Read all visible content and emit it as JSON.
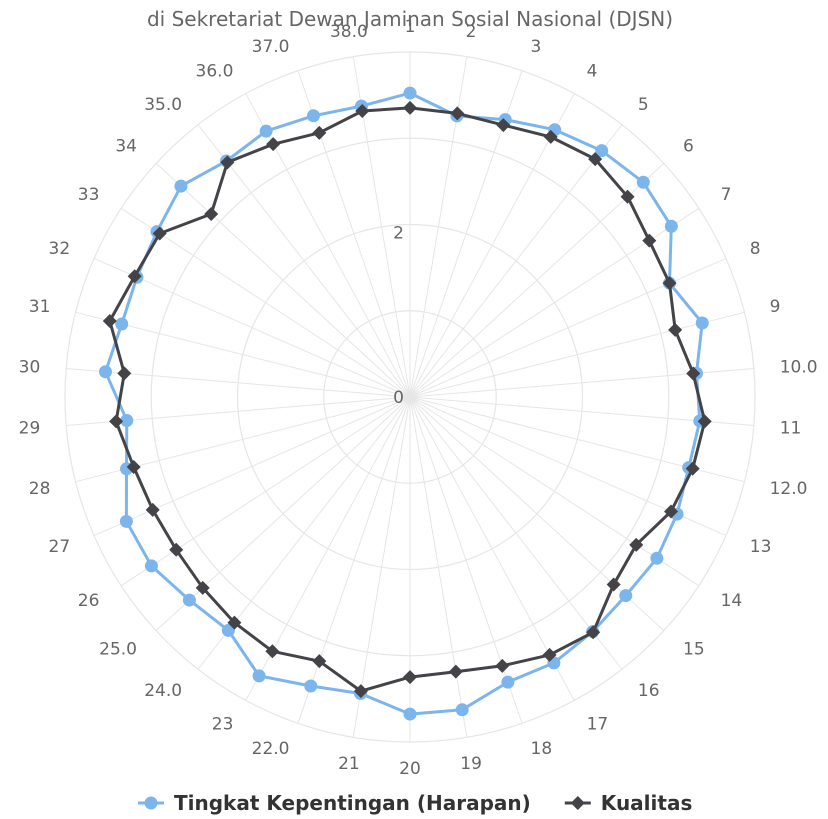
{
  "chart_data": {
    "type": "radar",
    "title": "di Sekretariat Dewan Jaminan Sosial Nasional (DJSN)",
    "categories": [
      "1",
      "2",
      "3",
      "4",
      "5",
      "6",
      "7",
      "8",
      "9",
      "10.0",
      "11",
      "12.0",
      "13",
      "14",
      "15",
      "16",
      "17",
      "18",
      "19",
      "20",
      "21",
      "22.0",
      "23",
      "24.0",
      "25.0",
      "26",
      "27",
      "28",
      "29",
      "30",
      "31",
      "32",
      "33",
      "34",
      "35.0",
      "36.0",
      "37.0",
      "38.0"
    ],
    "ylim": [
      0,
      4.2
    ],
    "yticks": [
      "0",
      "2"
    ],
    "grid": true,
    "legend_position": "bottom",
    "series": [
      {
        "name": "Tingkat Kepentingan (Harapan)",
        "color": "#7cb5ec",
        "marker": "circle",
        "values": [
          3.7,
          3.47,
          3.57,
          3.7,
          3.8,
          3.86,
          3.8,
          3.45,
          3.67,
          3.5,
          3.54,
          3.5,
          3.55,
          3.59,
          3.57,
          3.62,
          3.68,
          3.67,
          3.86,
          3.86,
          3.66,
          3.72,
          3.86,
          3.6,
          3.65,
          3.76,
          3.77,
          3.56,
          3.46,
          3.72,
          3.62,
          3.63,
          3.68,
          3.79,
          3.64,
          3.68,
          3.62,
          3.59
        ]
      },
      {
        "name": "Kualitas",
        "color": "#434348",
        "marker": "diamond",
        "values": [
          3.52,
          3.5,
          3.5,
          3.6,
          3.67,
          3.6,
          3.48,
          3.45,
          3.33,
          3.46,
          3.6,
          3.55,
          3.47,
          3.29,
          3.37,
          3.63,
          3.57,
          3.46,
          3.39,
          3.41,
          3.63,
          3.4,
          3.52,
          3.48,
          3.43,
          3.4,
          3.42,
          3.47,
          3.59,
          3.49,
          3.77,
          3.66,
          3.64,
          3.29,
          3.62,
          3.5,
          3.4,
          3.53
        ]
      }
    ]
  }
}
